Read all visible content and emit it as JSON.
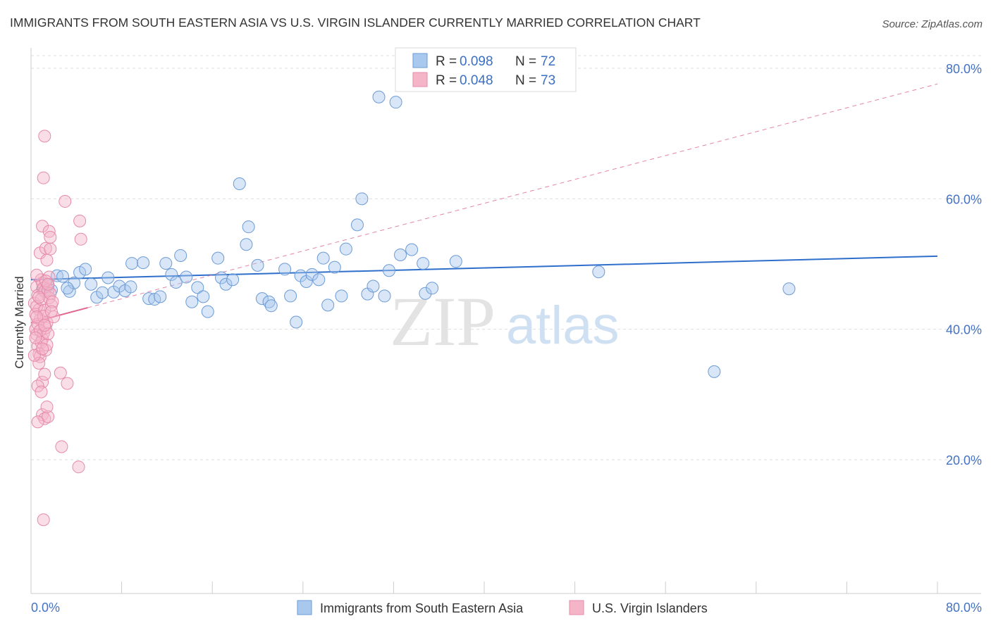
{
  "title": "IMMIGRANTS FROM SOUTH EASTERN ASIA VS U.S. VIRGIN ISLANDER CURRENTLY MARRIED CORRELATION CHART",
  "source": "Source: ZipAtlas.com",
  "watermark": {
    "zip": "ZIP",
    "atlas": "atlas"
  },
  "colors": {
    "blue_fill": "#a9c8ee",
    "blue_stroke": "#6b9bd6",
    "blue_line": "#2f6fcc",
    "pink_fill": "#f5b5c9",
    "pink_stroke": "#e58aa8",
    "pink_line": "#e06690",
    "grid": "#dddddd",
    "axis_text": "#4472c4"
  },
  "legend": {
    "rows": [
      {
        "r_label": "R =",
        "r_value": "0.098",
        "n_label": "N =",
        "n_value": "72"
      },
      {
        "r_label": "R =",
        "r_value": "0.048",
        "n_label": "N =",
        "n_value": "73"
      }
    ]
  },
  "chart_data": {
    "type": "scatter",
    "title": "IMMIGRANTS FROM SOUTH EASTERN ASIA VS U.S. VIRGIN ISLANDER CURRENTLY MARRIED CORRELATION CHART",
    "xlabel": "",
    "ylabel": "Currently Married",
    "xlim": [
      0,
      80
    ],
    "ylim": [
      0,
      82
    ],
    "x_tick_labels": [
      "0.0%",
      "80.0%"
    ],
    "y_ticks": [
      {
        "value": 80,
        "label": "80.0%"
      },
      {
        "value": 60,
        "label": "60.0%"
      },
      {
        "value": 40,
        "label": "40.0%"
      },
      {
        "value": 20,
        "label": "20.0%"
      }
    ],
    "series": [
      {
        "name": "Immigrants from South Eastern Asia",
        "r": 0.098,
        "n": 72,
        "trend": {
          "x": [
            0,
            80
          ],
          "y": [
            47.6,
            51.2
          ],
          "dashed": false
        },
        "points": [
          [
            1.0,
            46.1
          ],
          [
            1.5,
            46.7
          ],
          [
            1.8,
            46.0
          ],
          [
            2.3,
            48.2
          ],
          [
            2.8,
            48.1
          ],
          [
            3.4,
            45.8
          ],
          [
            3.8,
            47.1
          ],
          [
            4.3,
            48.7
          ],
          [
            4.8,
            49.2
          ],
          [
            5.3,
            46.9
          ],
          [
            5.8,
            44.9
          ],
          [
            6.3,
            45.6
          ],
          [
            6.8,
            47.9
          ],
          [
            7.3,
            45.7
          ],
          [
            7.8,
            46.6
          ],
          [
            8.3,
            45.9
          ],
          [
            8.8,
            46.5
          ],
          [
            8.9,
            50.1
          ],
          [
            9.9,
            50.2
          ],
          [
            10.4,
            44.7
          ],
          [
            10.9,
            44.6
          ],
          [
            11.4,
            45.0
          ],
          [
            11.9,
            50.1
          ],
          [
            12.4,
            48.4
          ],
          [
            12.8,
            47.2
          ],
          [
            13.2,
            51.3
          ],
          [
            13.7,
            48.0
          ],
          [
            14.2,
            44.2
          ],
          [
            14.7,
            46.4
          ],
          [
            15.2,
            45.0
          ],
          [
            15.6,
            42.7
          ],
          [
            16.5,
            50.9
          ],
          [
            16.8,
            47.9
          ],
          [
            17.2,
            46.9
          ],
          [
            17.8,
            47.6
          ],
          [
            18.4,
            62.3
          ],
          [
            19.0,
            53.0
          ],
          [
            19.2,
            55.7
          ],
          [
            20.0,
            49.8
          ],
          [
            20.4,
            44.7
          ],
          [
            21.0,
            44.2
          ],
          [
            21.2,
            43.6
          ],
          [
            22.4,
            49.2
          ],
          [
            22.9,
            45.1
          ],
          [
            23.4,
            41.1
          ],
          [
            23.8,
            48.2
          ],
          [
            24.3,
            47.3
          ],
          [
            24.8,
            48.4
          ],
          [
            25.4,
            47.6
          ],
          [
            25.8,
            50.9
          ],
          [
            26.2,
            43.7
          ],
          [
            26.8,
            49.5
          ],
          [
            27.4,
            45.1
          ],
          [
            27.8,
            52.3
          ],
          [
            28.8,
            56.0
          ],
          [
            29.2,
            60.0
          ],
          [
            29.7,
            45.4
          ],
          [
            30.2,
            46.6
          ],
          [
            30.7,
            75.6
          ],
          [
            31.2,
            45.1
          ],
          [
            31.6,
            49.0
          ],
          [
            32.2,
            74.8
          ],
          [
            32.6,
            51.4
          ],
          [
            33.6,
            52.2
          ],
          [
            34.6,
            50.1
          ],
          [
            34.8,
            45.5
          ],
          [
            35.4,
            46.3
          ],
          [
            37.5,
            50.4
          ],
          [
            50.1,
            48.8
          ],
          [
            60.3,
            33.5
          ],
          [
            66.9,
            46.2
          ],
          [
            3.2,
            46.3
          ]
        ]
      },
      {
        "name": "U.S. Virgin Islanders",
        "r": 0.048,
        "n": 73,
        "trend": {
          "x": [
            0,
            5
          ],
          "y": [
            41.0,
            43.3
          ],
          "dashed": false
        },
        "trend_extended": {
          "x": [
            5,
            80
          ],
          "y": [
            43.3,
            77.6
          ],
          "dashed": true
        },
        "points": [
          [
            0.3,
            44.0
          ],
          [
            0.5,
            46.5
          ],
          [
            0.6,
            45.2
          ],
          [
            0.7,
            43.0
          ],
          [
            0.8,
            41.5
          ],
          [
            0.4,
            40.0
          ],
          [
            0.5,
            39.2
          ],
          [
            0.9,
            47.6
          ],
          [
            1.0,
            47.1
          ],
          [
            1.1,
            46.3
          ],
          [
            1.2,
            45.8
          ],
          [
            0.6,
            37.4
          ],
          [
            0.7,
            36.2
          ],
          [
            0.8,
            35.8
          ],
          [
            1.0,
            38.5
          ],
          [
            1.1,
            39.4
          ],
          [
            1.3,
            40.2
          ],
          [
            1.4,
            41.0
          ],
          [
            0.4,
            42.3
          ],
          [
            0.5,
            43.5
          ],
          [
            0.9,
            44.6
          ],
          [
            1.2,
            42.9
          ],
          [
            0.6,
            40.8
          ],
          [
            0.8,
            39.8
          ],
          [
            1.5,
            46.0
          ],
          [
            1.6,
            44.8
          ],
          [
            1.1,
            42.0
          ],
          [
            0.9,
            38.0
          ],
          [
            1.3,
            36.8
          ],
          [
            1.4,
            37.6
          ],
          [
            0.7,
            34.8
          ],
          [
            1.0,
            31.9
          ],
          [
            0.6,
            31.3
          ],
          [
            1.2,
            33.1
          ],
          [
            0.5,
            48.3
          ],
          [
            0.8,
            51.7
          ],
          [
            1.0,
            55.8
          ],
          [
            1.1,
            63.2
          ],
          [
            1.2,
            69.6
          ],
          [
            1.3,
            52.4
          ],
          [
            1.4,
            50.6
          ],
          [
            1.6,
            48.0
          ],
          [
            1.7,
            45.5
          ],
          [
            1.8,
            43.7
          ],
          [
            1.9,
            44.2
          ],
          [
            0.4,
            38.7
          ],
          [
            0.3,
            36.0
          ],
          [
            1.5,
            39.3
          ],
          [
            1.7,
            52.3
          ],
          [
            1.6,
            55.0
          ],
          [
            1.7,
            54.1
          ],
          [
            2.0,
            41.9
          ],
          [
            2.6,
            33.3
          ],
          [
            3.2,
            31.7
          ],
          [
            2.7,
            22.0
          ],
          [
            4.2,
            18.9
          ],
          [
            3.0,
            59.6
          ],
          [
            4.3,
            56.6
          ],
          [
            4.4,
            53.8
          ],
          [
            1.0,
            26.9
          ],
          [
            1.2,
            26.3
          ],
          [
            1.5,
            26.6
          ],
          [
            0.6,
            25.8
          ],
          [
            1.1,
            10.8
          ],
          [
            1.8,
            42.7
          ],
          [
            1.4,
            28.1
          ],
          [
            0.9,
            30.4
          ],
          [
            1.3,
            47.4
          ],
          [
            1.5,
            46.9
          ],
          [
            0.7,
            44.9
          ],
          [
            0.5,
            41.9
          ],
          [
            1.2,
            40.6
          ],
          [
            1.0,
            37.0
          ]
        ]
      }
    ],
    "legend_placement": "top-center"
  },
  "bottom_legend": [
    {
      "label": "Immigrants from South Eastern Asia"
    },
    {
      "label": "U.S. Virgin Islanders"
    }
  ]
}
